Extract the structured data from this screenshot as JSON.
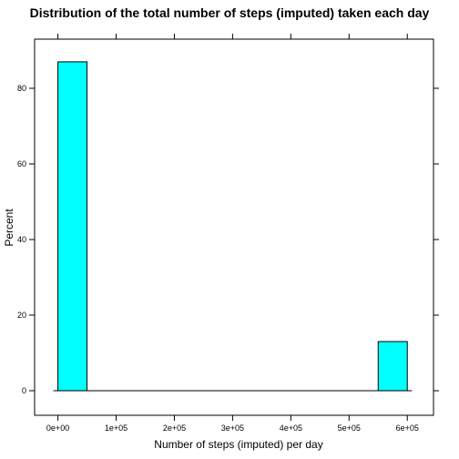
{
  "chart_data": {
    "type": "bar",
    "title": "Distribution of the total number of steps (imputed) taken each day",
    "xlabel": "Number of steps (imputed) per day",
    "ylabel": "Percent",
    "xlim": [
      -40000,
      645000
    ],
    "ylim": [
      -6.5,
      93
    ],
    "x_ticks": [
      0,
      100000,
      200000,
      300000,
      400000,
      500000,
      600000
    ],
    "x_tick_labels": [
      "0e+00",
      "1e+05",
      "2e+05",
      "3e+05",
      "4e+05",
      "5e+05",
      "6e+05"
    ],
    "y_ticks": [
      0,
      20,
      40,
      60,
      80
    ],
    "y_tick_labels": [
      "0",
      "20",
      "40",
      "60",
      "80"
    ],
    "bins": [
      {
        "start": 0,
        "end": 50000,
        "value": 87
      },
      {
        "start": 50000,
        "end": 100000,
        "value": 0
      },
      {
        "start": 100000,
        "end": 150000,
        "value": 0
      },
      {
        "start": 150000,
        "end": 200000,
        "value": 0
      },
      {
        "start": 200000,
        "end": 250000,
        "value": 0
      },
      {
        "start": 250000,
        "end": 300000,
        "value": 0
      },
      {
        "start": 300000,
        "end": 350000,
        "value": 0
      },
      {
        "start": 350000,
        "end": 400000,
        "value": 0
      },
      {
        "start": 400000,
        "end": 450000,
        "value": 0
      },
      {
        "start": 450000,
        "end": 500000,
        "value": 0
      },
      {
        "start": 500000,
        "end": 550000,
        "value": 0
      },
      {
        "start": 550000,
        "end": 600000,
        "value": 13
      }
    ],
    "bar_color": "#00FFFF",
    "grid": false,
    "legend": "none"
  }
}
